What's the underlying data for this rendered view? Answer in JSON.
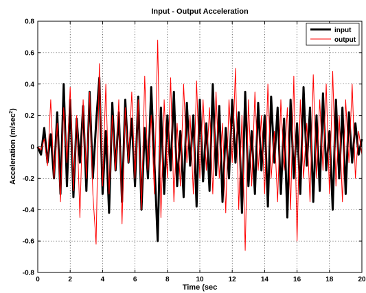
{
  "chart_data": {
    "type": "line",
    "title": "Input - Output Acceleration",
    "xlabel": "Time (sec",
    "ylabel": "Acceleration (m/sec",
    "ylabel_superscript": "2",
    "ylabel_close": ")",
    "xlim": [
      0,
      20
    ],
    "ylim": [
      -0.8,
      0.8
    ],
    "xticks": [
      "0",
      "2",
      "4",
      "6",
      "8",
      "10",
      "12",
      "14",
      "16",
      "18",
      "20"
    ],
    "yticks": [
      "-0.8",
      "-0.6",
      "-0.4",
      "-0.2",
      "0",
      "0.2",
      "0.4",
      "0.6",
      "0.8"
    ],
    "grid": true,
    "legend_position": "top-right",
    "series": [
      {
        "name": "input",
        "color": "#000000",
        "x": [
          0,
          0.2,
          0.4,
          0.6,
          0.8,
          1.0,
          1.2,
          1.4,
          1.6,
          1.8,
          2.0,
          2.2,
          2.4,
          2.6,
          2.8,
          3.0,
          3.2,
          3.4,
          3.6,
          3.8,
          4.0,
          4.2,
          4.4,
          4.6,
          4.8,
          5.0,
          5.2,
          5.4,
          5.6,
          5.8,
          6.0,
          6.2,
          6.4,
          6.6,
          6.8,
          7.0,
          7.2,
          7.4,
          7.6,
          7.8,
          8.0,
          8.2,
          8.4,
          8.6,
          8.8,
          9.0,
          9.2,
          9.4,
          9.6,
          9.8,
          10.0,
          10.2,
          10.4,
          10.6,
          10.8,
          11.0,
          11.2,
          11.4,
          11.6,
          11.8,
          12.0,
          12.2,
          12.4,
          12.6,
          12.8,
          13.0,
          13.2,
          13.4,
          13.6,
          13.8,
          14.0,
          14.2,
          14.4,
          14.6,
          14.8,
          15.0,
          15.2,
          15.4,
          15.6,
          15.8,
          16.0,
          16.2,
          16.4,
          16.6,
          16.8,
          17.0,
          17.2,
          17.4,
          17.6,
          17.8,
          18.0,
          18.2,
          18.4,
          18.6,
          18.8,
          19.0,
          19.2,
          19.4,
          19.6,
          19.8,
          20.0
        ],
        "y": [
          0,
          -0.05,
          0.12,
          -0.1,
          0.08,
          -0.2,
          0.22,
          -0.3,
          0.4,
          -0.25,
          0.3,
          -0.32,
          0.18,
          -0.1,
          0.26,
          -0.28,
          0.35,
          -0.2,
          0.15,
          0.44,
          -0.3,
          0.1,
          -0.42,
          0.28,
          -0.15,
          0.22,
          -0.35,
          0.3,
          -0.1,
          0.18,
          -0.25,
          0.32,
          -0.4,
          0.12,
          -0.2,
          0.38,
          -0.1,
          -0.6,
          0.25,
          -0.3,
          0.2,
          -0.15,
          0.35,
          -0.25,
          0.1,
          -0.32,
          0.28,
          -0.12,
          0.2,
          -0.38,
          0.3,
          -0.22,
          0.15,
          -0.28,
          0.4,
          -0.18,
          0.26,
          -0.35,
          0.12,
          -0.2,
          0.3,
          -0.1,
          0.22,
          -0.42,
          0.35,
          -0.25,
          0.1,
          -0.3,
          0.28,
          -0.15,
          0.2,
          -0.38,
          0.32,
          -0.1,
          0.25,
          -0.3,
          0.18,
          -0.45,
          0.3,
          -0.2,
          0.15,
          -0.3,
          0.38,
          -0.12,
          0.25,
          -0.35,
          0.2,
          -0.28,
          0.34,
          -0.15,
          0.1,
          -0.4,
          0.3,
          -0.2,
          0.25,
          -0.3,
          0.22,
          -0.1,
          0.15,
          -0.05,
          0.05
        ]
      },
      {
        "name": "output",
        "color": "#ff0000",
        "x": [
          0,
          0.2,
          0.4,
          0.6,
          0.8,
          1.0,
          1.2,
          1.4,
          1.6,
          1.8,
          2.0,
          2.2,
          2.4,
          2.6,
          2.8,
          3.0,
          3.2,
          3.4,
          3.6,
          3.8,
          4.0,
          4.2,
          4.4,
          4.6,
          4.8,
          5.0,
          5.2,
          5.4,
          5.6,
          5.8,
          6.0,
          6.2,
          6.4,
          6.6,
          6.8,
          7.0,
          7.2,
          7.4,
          7.6,
          7.8,
          8.0,
          8.2,
          8.4,
          8.6,
          8.8,
          9.0,
          9.2,
          9.4,
          9.6,
          9.8,
          10.0,
          10.2,
          10.4,
          10.6,
          10.8,
          11.0,
          11.2,
          11.4,
          11.6,
          11.8,
          12.0,
          12.2,
          12.4,
          12.6,
          12.8,
          13.0,
          13.2,
          13.4,
          13.6,
          13.8,
          14.0,
          14.2,
          14.4,
          14.6,
          14.8,
          15.0,
          15.2,
          15.4,
          15.6,
          15.8,
          16.0,
          16.2,
          16.4,
          16.6,
          16.8,
          17.0,
          17.2,
          17.4,
          17.6,
          17.8,
          18.0,
          18.2,
          18.4,
          18.6,
          18.8,
          19.0,
          19.2,
          19.4,
          19.6,
          19.8,
          20.0
        ],
        "y": [
          0,
          -0.02,
          0.05,
          -0.12,
          0.3,
          -0.2,
          0.15,
          -0.35,
          0.25,
          -0.1,
          0.38,
          -0.28,
          0.2,
          -0.45,
          0.3,
          -0.2,
          0.35,
          -0.3,
          -0.62,
          0.53,
          -0.25,
          0.4,
          -0.3,
          0.2,
          -0.15,
          0.3,
          -0.49,
          0.25,
          -0.1,
          0.35,
          -0.2,
          0.3,
          -0.4,
          0.45,
          -0.15,
          0.2,
          -0.3,
          0.68,
          -0.45,
          0.3,
          -0.2,
          0.44,
          -0.35,
          0.15,
          -0.25,
          0.4,
          -0.1,
          0.2,
          -0.3,
          0.42,
          -0.2,
          0.3,
          -0.15,
          0.25,
          -0.3,
          0.35,
          -0.2,
          0.15,
          -0.42,
          0.3,
          -0.1,
          0.5,
          -0.4,
          0.2,
          -0.66,
          0.3,
          -0.25,
          0.35,
          -0.15,
          0.2,
          -0.3,
          0.4,
          -0.2,
          0.1,
          -0.35,
          0.3,
          -0.15,
          0.25,
          -0.4,
          0.45,
          -0.6,
          0.3,
          -0.2,
          0.15,
          -0.35,
          0.46,
          -0.2,
          0.3,
          -0.15,
          0.4,
          -0.3,
          0.48,
          -0.25,
          0.2,
          -0.35,
          0.3,
          -0.1,
          0.4,
          -0.2,
          0.1,
          -0.05
        ]
      }
    ]
  }
}
